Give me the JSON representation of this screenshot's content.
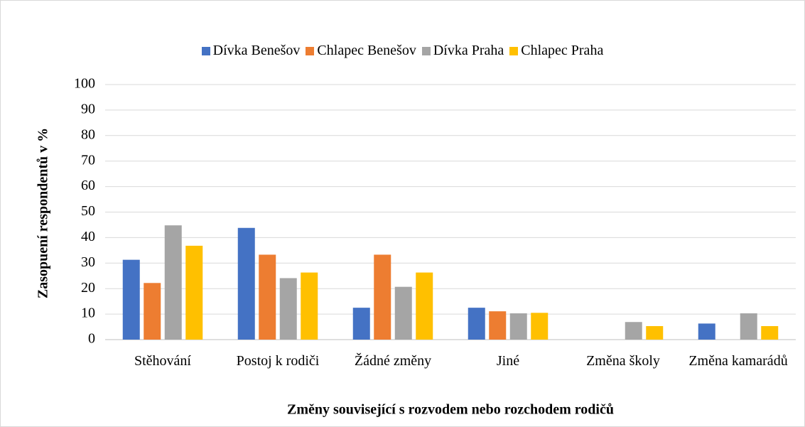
{
  "chart_data": {
    "type": "bar",
    "x_label": "Změny související s rozvodem nebo rozchodem rodičů",
    "y_label": "Zasopuení respondentů v %",
    "categories": [
      "Stěhování",
      "Postoj k rodiči",
      "Žádné změny",
      "Jiné",
      "Změna školy",
      "Změna kamarádů"
    ],
    "series": [
      {
        "name": "Dívka Benešov",
        "color": "#4472c4",
        "values": [
          31.3,
          43.8,
          12.5,
          12.5,
          0,
          6.3
        ]
      },
      {
        "name": "Chlapec Benešov",
        "color": "#ed7d31",
        "values": [
          22.2,
          33.3,
          33.3,
          11.1,
          0,
          0
        ]
      },
      {
        "name": "Dívka Praha",
        "color": "#a5a5a5",
        "values": [
          44.8,
          24.1,
          20.7,
          10.3,
          6.9,
          10.3
        ]
      },
      {
        "name": "Chlapec Praha",
        "color": "#ffc000",
        "values": [
          36.8,
          26.3,
          26.3,
          10.5,
          5.3,
          5.3
        ]
      }
    ],
    "ylim": [
      0,
      100
    ],
    "yticks": [
      0,
      10,
      20,
      30,
      40,
      50,
      60,
      70,
      80,
      90,
      100
    ],
    "grid": true,
    "legend": "top"
  }
}
